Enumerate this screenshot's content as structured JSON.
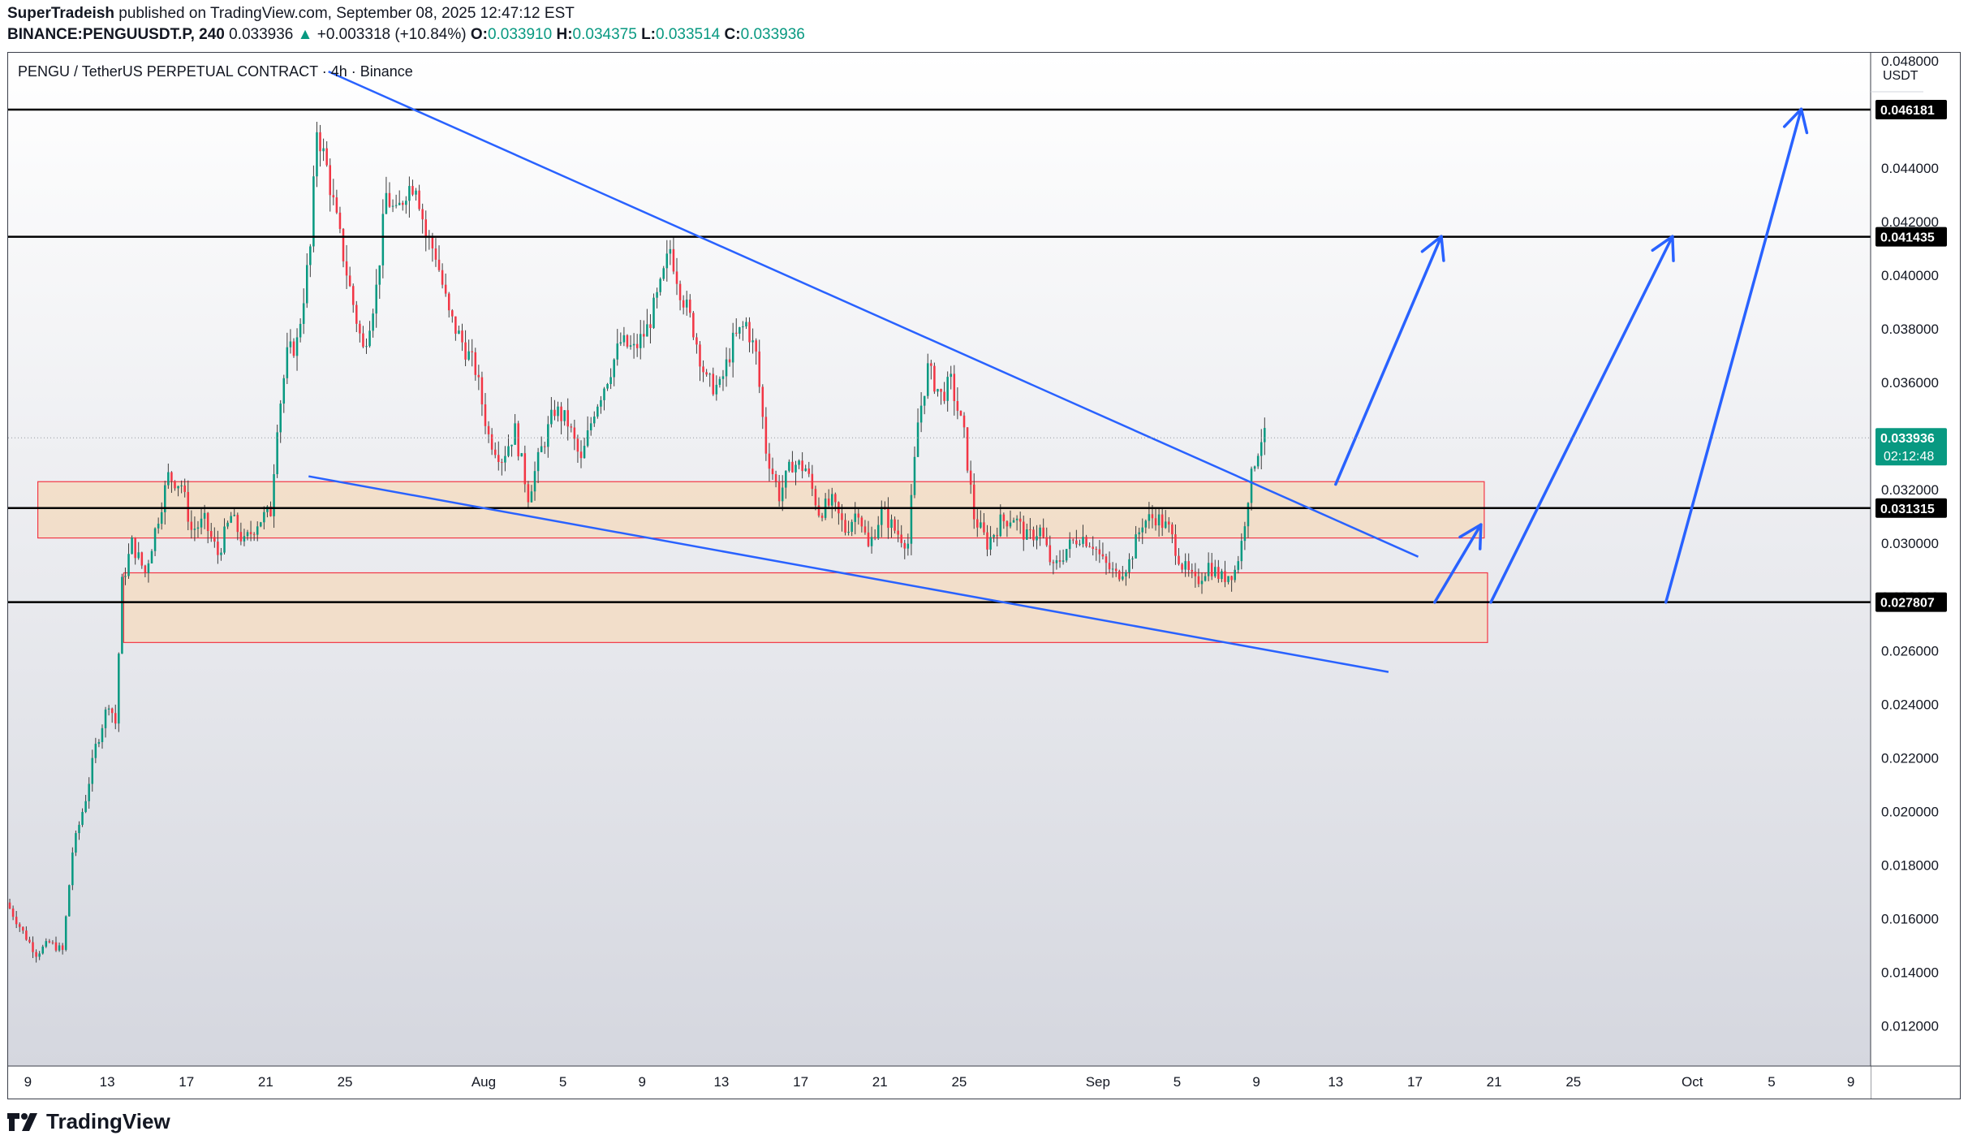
{
  "header": {
    "author": "SuperTradeish",
    "published": "published on TradingView.com, September 08, 2025 12:47:12 EST",
    "symbol": "BINANCE:PENGUUSDT.P, 240",
    "last": "0.033936",
    "up_arrow": "▲",
    "change": "+0.003318 (+10.84%)",
    "o_label": "O:",
    "o_value": "0.033910",
    "h_label": "H:",
    "h_value": "0.034375",
    "l_label": "L:",
    "l_value": "0.033514",
    "c_label": "C:",
    "c_value": "0.033936"
  },
  "chart_title": "PENGU / TetherUS PERPETUAL CONTRACT · 4h · Binance",
  "brand": "TradingView",
  "colors": {
    "up": "#089981",
    "down": "#f23645",
    "wick": "#3c3c3c",
    "trendline": "#2962ff",
    "arrow": "#2962ff",
    "level": "#000000",
    "zone_fill": "#f3dcc3",
    "zone_border": "#f23645",
    "last_price_bg": "#089981"
  },
  "chart_data": {
    "type": "candlestick",
    "symbol": "BINANCE:PENGUUSDT.P",
    "interval": "4h",
    "currency": "USDT",
    "y_range": [
      0.0105,
      0.0483
    ],
    "y_ticks": [
      "0.048000",
      "0.046000",
      "0.044000",
      "0.042000",
      "0.040000",
      "0.038000",
      "0.036000",
      "0.034000",
      "0.032000",
      "0.030000",
      "0.028000",
      "0.026000",
      "0.024000",
      "0.022000",
      "0.020000",
      "0.018000",
      "0.016000",
      "0.014000",
      "0.012000"
    ],
    "x_range": [
      "2025-07-08",
      "2025-10-10"
    ],
    "x_ticks": [
      {
        "date": "2025-07-09",
        "label": "9"
      },
      {
        "date": "2025-07-13",
        "label": "13"
      },
      {
        "date": "2025-07-17",
        "label": "17"
      },
      {
        "date": "2025-07-21",
        "label": "21"
      },
      {
        "date": "2025-07-25",
        "label": "25"
      },
      {
        "date": "2025-08-01",
        "label": "Aug"
      },
      {
        "date": "2025-08-05",
        "label": "5"
      },
      {
        "date": "2025-08-09",
        "label": "9"
      },
      {
        "date": "2025-08-13",
        "label": "13"
      },
      {
        "date": "2025-08-17",
        "label": "17"
      },
      {
        "date": "2025-08-21",
        "label": "21"
      },
      {
        "date": "2025-08-25",
        "label": "25"
      },
      {
        "date": "2025-09-01",
        "label": "Sep"
      },
      {
        "date": "2025-09-05",
        "label": "5"
      },
      {
        "date": "2025-09-09",
        "label": "9"
      },
      {
        "date": "2025-09-13",
        "label": "13"
      },
      {
        "date": "2025-09-17",
        "label": "17"
      },
      {
        "date": "2025-09-21",
        "label": "21"
      },
      {
        "date": "2025-09-25",
        "label": "25"
      },
      {
        "date": "2025-10-01",
        "label": "Oct"
      },
      {
        "date": "2025-10-05",
        "label": "5"
      },
      {
        "date": "2025-10-09",
        "label": "9"
      }
    ],
    "price_anchors": [
      [
        "2025-07-08 00:00",
        0.0166
      ],
      [
        "2025-07-08 20:00",
        0.0155
      ],
      [
        "2025-07-09 12:00",
        0.0147
      ],
      [
        "2025-07-10 04:00",
        0.0151
      ],
      [
        "2025-07-10 20:00",
        0.0148
      ],
      [
        "2025-07-11 08:00",
        0.0185
      ],
      [
        "2025-07-12 00:00",
        0.0205
      ],
      [
        "2025-07-12 12:00",
        0.0224
      ],
      [
        "2025-07-13 04:00",
        0.0241
      ],
      [
        "2025-07-13 12:00",
        0.0233
      ],
      [
        "2025-07-13 20:00",
        0.0285
      ],
      [
        "2025-07-14 08:00",
        0.03
      ],
      [
        "2025-07-15 00:00",
        0.0289
      ],
      [
        "2025-07-15 16:00",
        0.031
      ],
      [
        "2025-07-16 04:00",
        0.0325
      ],
      [
        "2025-07-16 20:00",
        0.0322
      ],
      [
        "2025-07-17 08:00",
        0.0305
      ],
      [
        "2025-07-18 00:00",
        0.0308
      ],
      [
        "2025-07-18 16:00",
        0.0296
      ],
      [
        "2025-07-19 08:00",
        0.031
      ],
      [
        "2025-07-20 00:00",
        0.03
      ],
      [
        "2025-07-20 16:00",
        0.0308
      ],
      [
        "2025-07-21 08:00",
        0.0312
      ],
      [
        "2025-07-21 16:00",
        0.0345
      ],
      [
        "2025-07-22 04:00",
        0.037
      ],
      [
        "2025-07-22 16:00",
        0.0375
      ],
      [
        "2025-07-23 08:00",
        0.041
      ],
      [
        "2025-07-23 16:00",
        0.0455
      ],
      [
        "2025-07-24 04:00",
        0.044
      ],
      [
        "2025-07-24 16:00",
        0.042
      ],
      [
        "2025-07-25 08:00",
        0.0395
      ],
      [
        "2025-07-26 00:00",
        0.0372
      ],
      [
        "2025-07-26 16:00",
        0.0395
      ],
      [
        "2025-07-27 04:00",
        0.043
      ],
      [
        "2025-07-27 16:00",
        0.0422
      ],
      [
        "2025-07-28 04:00",
        0.0432
      ],
      [
        "2025-07-28 16:00",
        0.0435
      ],
      [
        "2025-07-29 04:00",
        0.0415
      ],
      [
        "2025-07-29 16:00",
        0.0408
      ],
      [
        "2025-07-30 08:00",
        0.0385
      ],
      [
        "2025-07-31 00:00",
        0.0375
      ],
      [
        "2025-07-31 16:00",
        0.0365
      ],
      [
        "2025-08-01 08:00",
        0.034
      ],
      [
        "2025-08-02 00:00",
        0.0332
      ],
      [
        "2025-08-02 16:00",
        0.0342
      ],
      [
        "2025-08-03 08:00",
        0.0318
      ],
      [
        "2025-08-04 00:00",
        0.0335
      ],
      [
        "2025-08-04 16:00",
        0.035
      ],
      [
        "2025-08-05 08:00",
        0.0345
      ],
      [
        "2025-08-06 00:00",
        0.033
      ],
      [
        "2025-08-06 16:00",
        0.035
      ],
      [
        "2025-08-07 08:00",
        0.0362
      ],
      [
        "2025-08-08 00:00",
        0.0375
      ],
      [
        "2025-08-08 16:00",
        0.0372
      ],
      [
        "2025-08-09 08:00",
        0.038
      ],
      [
        "2025-08-10 00:00",
        0.0395
      ],
      [
        "2025-08-10 12:00",
        0.041
      ],
      [
        "2025-08-11 00:00",
        0.0395
      ],
      [
        "2025-08-11 16:00",
        0.038
      ],
      [
        "2025-08-12 08:00",
        0.036
      ],
      [
        "2025-08-13 00:00",
        0.0358
      ],
      [
        "2025-08-13 16:00",
        0.0375
      ],
      [
        "2025-08-14 08:00",
        0.0382
      ],
      [
        "2025-08-14 20:00",
        0.037
      ],
      [
        "2025-08-15 08:00",
        0.0335
      ],
      [
        "2025-08-16 00:00",
        0.0318
      ],
      [
        "2025-08-16 16:00",
        0.033
      ],
      [
        "2025-08-17 08:00",
        0.0328
      ],
      [
        "2025-08-18 00:00",
        0.0312
      ],
      [
        "2025-08-18 16:00",
        0.0315
      ],
      [
        "2025-08-19 08:00",
        0.0305
      ],
      [
        "2025-08-20 00:00",
        0.0313
      ],
      [
        "2025-08-20 12:00",
        0.0298
      ],
      [
        "2025-08-21 04:00",
        0.0312
      ],
      [
        "2025-08-21 20:00",
        0.0305
      ],
      [
        "2025-08-22 12:00",
        0.03
      ],
      [
        "2025-08-23 00:00",
        0.0345
      ],
      [
        "2025-08-23 12:00",
        0.0365
      ],
      [
        "2025-08-24 04:00",
        0.0355
      ],
      [
        "2025-08-24 16:00",
        0.036
      ],
      [
        "2025-08-25 08:00",
        0.034
      ],
      [
        "2025-08-25 20:00",
        0.031
      ],
      [
        "2025-08-26 12:00",
        0.03
      ],
      [
        "2025-08-27 04:00",
        0.0308
      ],
      [
        "2025-08-27 20:00",
        0.031
      ],
      [
        "2025-08-28 12:00",
        0.0302
      ],
      [
        "2025-08-29 04:00",
        0.0305
      ],
      [
        "2025-08-29 20:00",
        0.029
      ],
      [
        "2025-08-30 12:00",
        0.0298
      ],
      [
        "2025-08-31 04:00",
        0.0303
      ],
      [
        "2025-08-31 20:00",
        0.03
      ],
      [
        "2025-09-01 08:00",
        0.0293
      ],
      [
        "2025-09-02 00:00",
        0.0288
      ],
      [
        "2025-09-02 16:00",
        0.0293
      ],
      [
        "2025-09-03 08:00",
        0.0308
      ],
      [
        "2025-09-04 00:00",
        0.031
      ],
      [
        "2025-09-04 16:00",
        0.0305
      ],
      [
        "2025-09-05 08:00",
        0.0292
      ],
      [
        "2025-09-06 00:00",
        0.0285
      ],
      [
        "2025-09-06 16:00",
        0.0292
      ],
      [
        "2025-09-07 08:00",
        0.0287
      ],
      [
        "2025-09-08 00:00",
        0.029
      ],
      [
        "2025-09-08 08:00",
        0.03
      ],
      [
        "2025-09-08 16:00",
        0.0318
      ],
      [
        "2025-09-09 00:00",
        0.0331
      ],
      [
        "2025-09-09 08:00",
        0.03394
      ]
    ],
    "horizontal_levels": [
      {
        "price": 0.046181,
        "label": "0.046181"
      },
      {
        "price": 0.041435,
        "label": "0.041435"
      },
      {
        "price": 0.031315,
        "label": "0.031315"
      },
      {
        "price": 0.027807,
        "label": "0.027807"
      }
    ],
    "zones": [
      {
        "from": "2025-07-09 12:00",
        "to": "2025-09-20 12:00",
        "top": 0.0323,
        "bottom": 0.0302
      },
      {
        "from": "2025-07-13 20:00",
        "to": "2025-09-20 16:00",
        "top": 0.0289,
        "bottom": 0.0263
      }
    ],
    "trendlines": [
      {
        "from": [
          "2025-07-24 04:00",
          0.0476
        ],
        "to": [
          "2025-09-17 04:00",
          0.0295
        ]
      },
      {
        "from": [
          "2025-07-23 04:00",
          0.0325
        ],
        "to": [
          "2025-09-15 16:00",
          0.0252
        ]
      }
    ],
    "arrows": [
      {
        "from": [
          "2025-09-13 00:00",
          0.0322
        ],
        "to": [
          "2025-09-18 08:00",
          0.04145
        ]
      },
      {
        "from": [
          "2025-09-18 00:00",
          0.0278
        ],
        "to": [
          "2025-09-20 08:00",
          0.0307
        ]
      },
      {
        "from": [
          "2025-09-20 20:00",
          0.0278
        ],
        "to": [
          "2025-09-30 00:00",
          0.04145
        ]
      },
      {
        "from": [
          "2025-09-29 16:00",
          0.0278
        ],
        "to": [
          "2025-10-06 12:00",
          0.0462
        ]
      }
    ],
    "last_price": {
      "value": "0.033936",
      "countdown": "02:12:48"
    },
    "grid": false
  }
}
